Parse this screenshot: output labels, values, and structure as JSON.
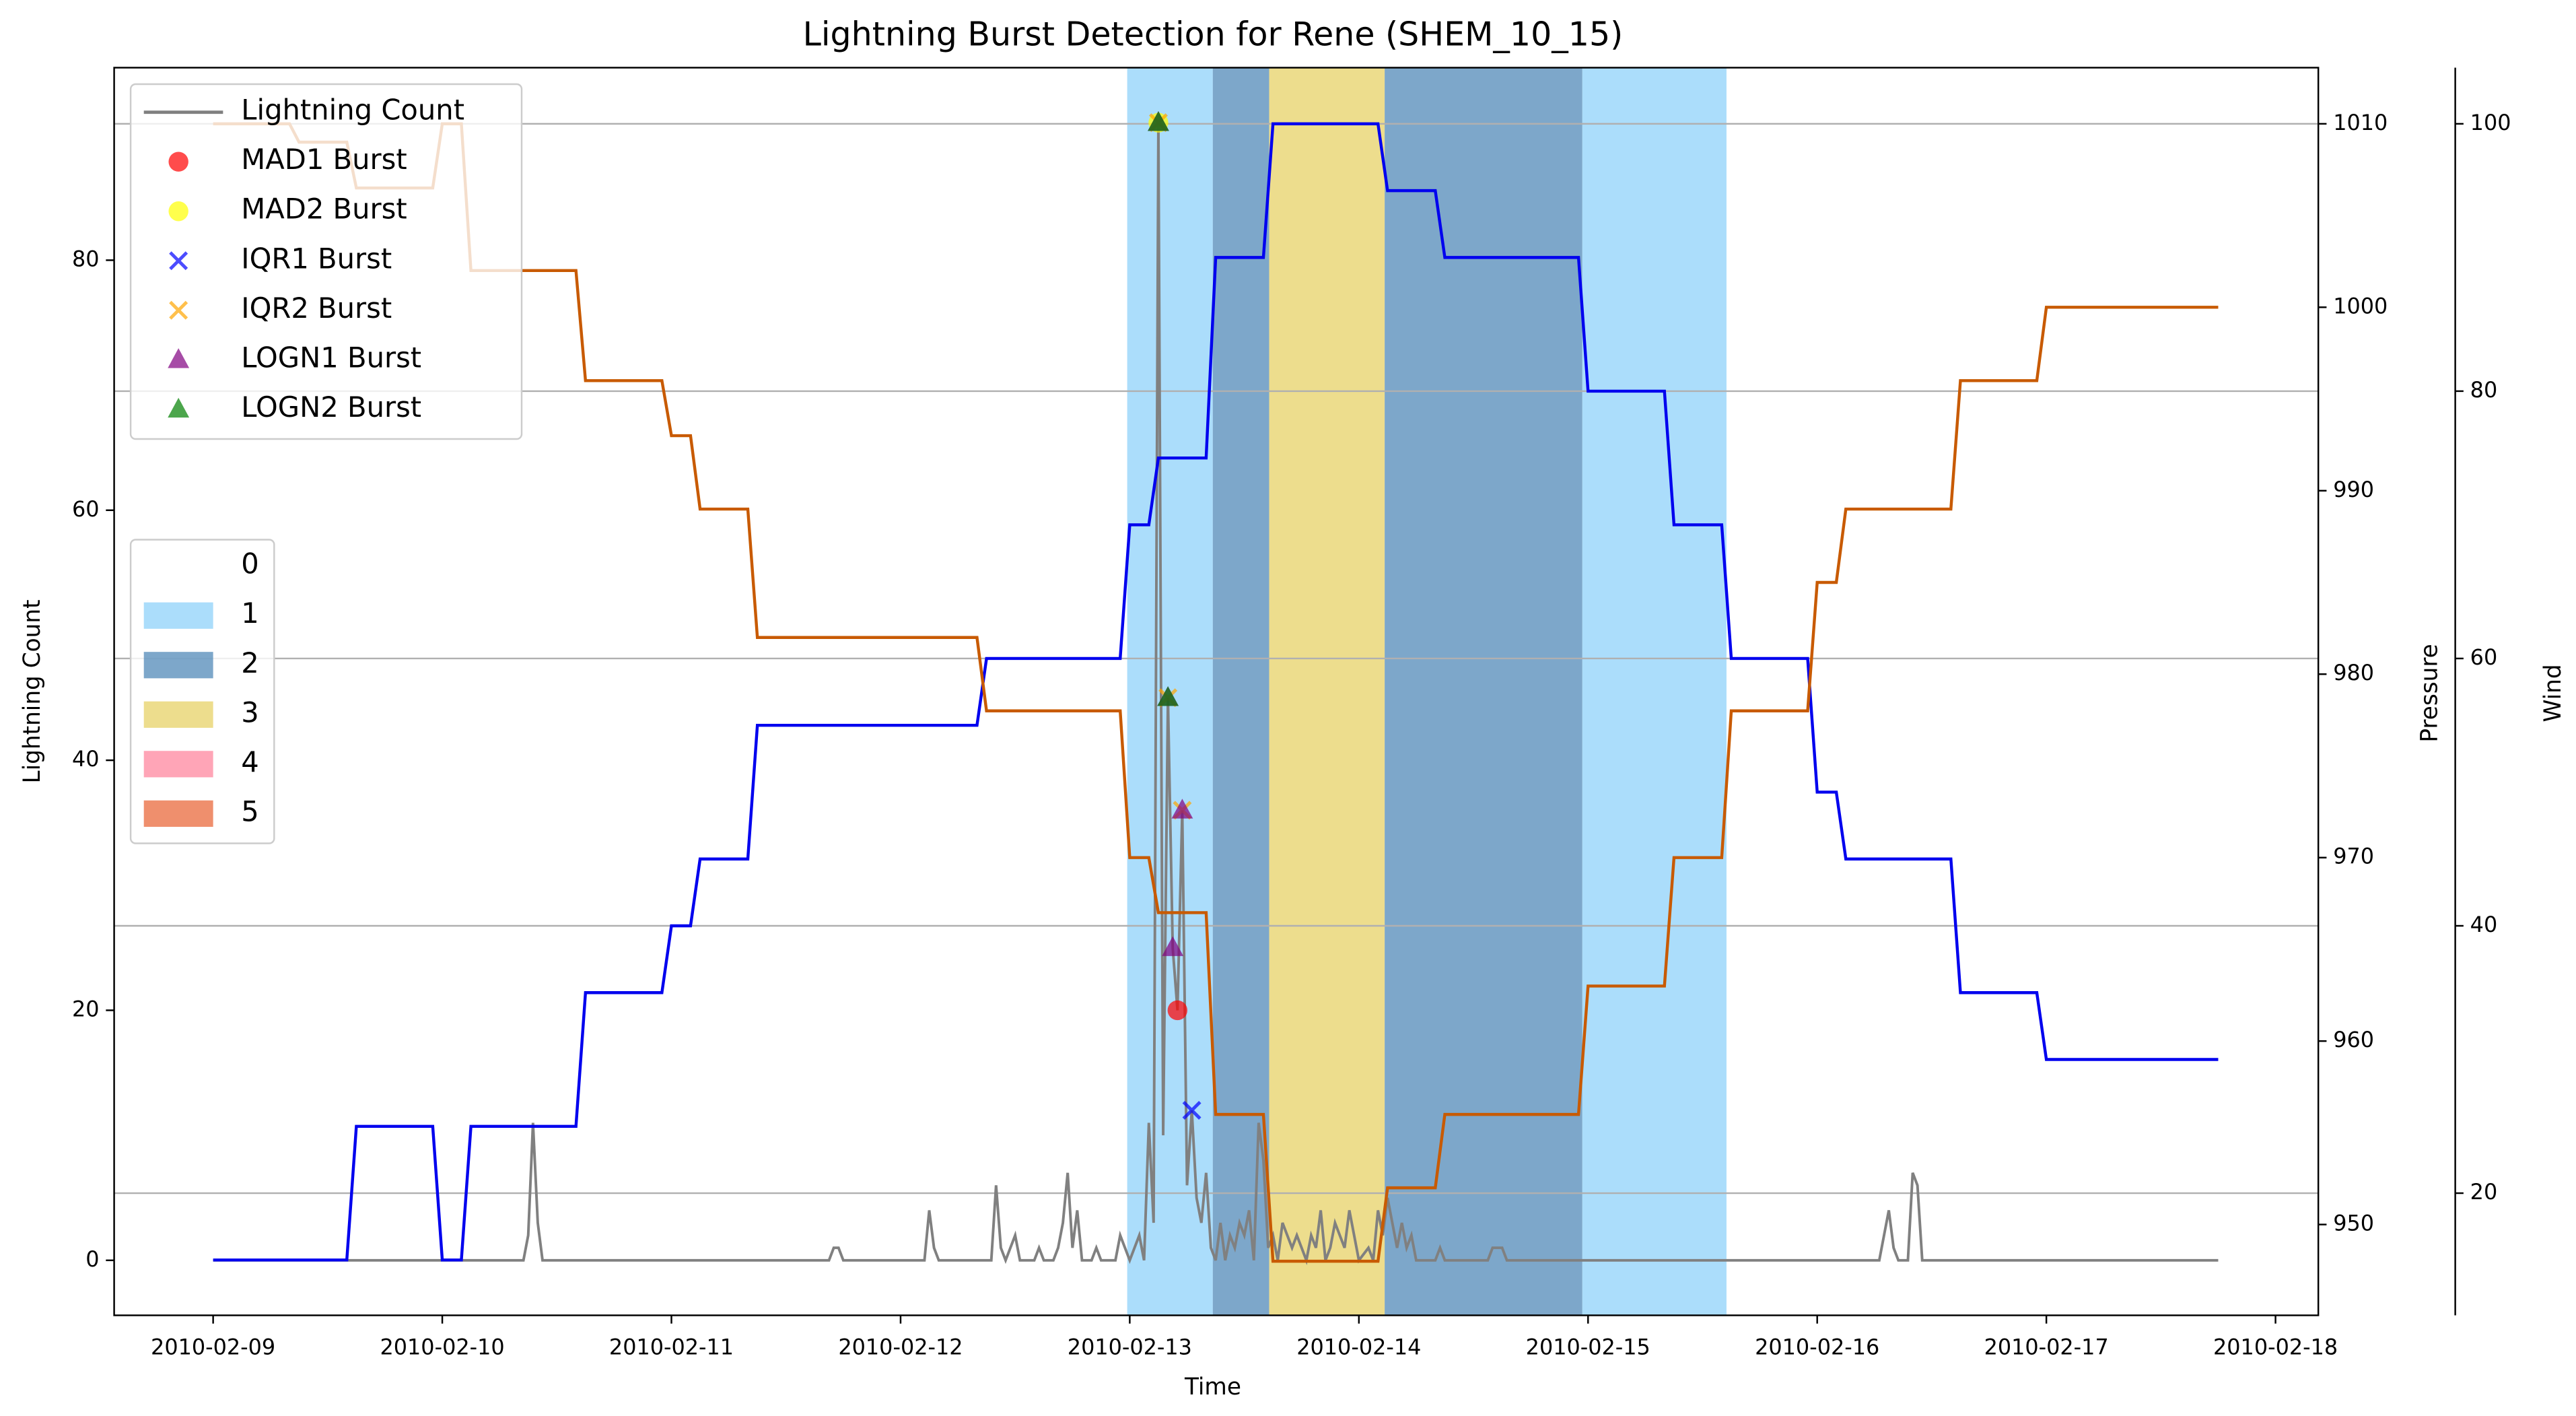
{
  "chart_data": {
    "type": "line",
    "title": "Lightning Burst Detection for Rene (SHEM_10_15)",
    "xlabel": "Time",
    "ylabel": "Lightning Count",
    "y2label": "Pressure",
    "y3label": "Wind",
    "xlim": [
      "2010-02-08 13:38",
      "2010-02-18 04:29"
    ],
    "xticks": [
      "2010-02-09",
      "2010-02-10",
      "2010-02-11",
      "2010-02-12",
      "2010-02-13",
      "2010-02-14",
      "2010-02-15",
      "2010-02-16",
      "2010-02-17",
      "2010-02-18"
    ],
    "ylim": [
      -4.4,
      95.4
    ],
    "yticks": [
      0,
      20,
      40,
      60,
      80
    ],
    "y2lim": [
      945.05,
      1013.06
    ],
    "y2ticks": [
      950,
      960,
      970,
      980,
      990,
      1000,
      1010
    ],
    "y3lim": [
      10.86,
      104.2
    ],
    "y3ticks": [
      20,
      40,
      60,
      80,
      100
    ],
    "grid": "y3",
    "legend": "upper left",
    "ycolor": "#808080",
    "y2color": "#c85a00",
    "y3color": "#00008b",
    "shading": {
      "categories": [
        0,
        1,
        2,
        3,
        4,
        5
      ],
      "colors": [
        "#ffffff",
        "#87cefa",
        "#4682b4",
        "#e6cf5c",
        "#ff7f99",
        "#e8602f"
      ],
      "spans": [
        {
          "start": "2010-02-12 23:44",
          "end": "2010-02-13 08:42",
          "category": 1
        },
        {
          "start": "2010-02-13 08:42",
          "end": "2010-02-13 14:36",
          "category": 2
        },
        {
          "start": "2010-02-13 14:36",
          "end": "2010-02-14 02:42",
          "category": 3
        },
        {
          "start": "2010-02-14 02:42",
          "end": "2010-02-14 23:24",
          "category": 2
        },
        {
          "start": "2010-02-14 23:24",
          "end": "2010-02-15 14:30",
          "category": 1
        }
      ]
    },
    "series": [
      {
        "name": "Lightning Count",
        "type": "line",
        "color": "#808080",
        "x": [
          "2010-02-09 00:00",
          "2010-02-10 08:30",
          "2010-02-10 09:00",
          "2010-02-10 09:30",
          "2010-02-10 10:00",
          "2010-02-10 10:30",
          "2010-02-11 16:30",
          "2010-02-11 17:00",
          "2010-02-11 17:30",
          "2010-02-11 18:00",
          "2010-02-12 02:30",
          "2010-02-12 03:00",
          "2010-02-12 03:30",
          "2010-02-12 04:00",
          "2010-02-12 09:30",
          "2010-02-12 10:00",
          "2010-02-12 10:30",
          "2010-02-12 11:00",
          "2010-02-12 11:30",
          "2010-02-12 12:00",
          "2010-02-12 12:30",
          "2010-02-12 14:00",
          "2010-02-12 14:30",
          "2010-02-12 15:00",
          "2010-02-12 16:00",
          "2010-02-12 16:30",
          "2010-02-12 17:00",
          "2010-02-12 17:30",
          "2010-02-12 18:00",
          "2010-02-12 18:30",
          "2010-02-12 19:00",
          "2010-02-12 20:00",
          "2010-02-12 20:30",
          "2010-02-12 21:00",
          "2010-02-12 22:30",
          "2010-02-12 23:00",
          "2010-02-12 23:30",
          "2010-02-13 00:00",
          "2010-02-13 00:30",
          "2010-02-13 01:00",
          "2010-02-13 01:30",
          "2010-02-13 02:00",
          "2010-02-13 02:30",
          "2010-02-13 03:00",
          "2010-02-13 03:30",
          "2010-02-13 04:00",
          "2010-02-13 04:30",
          "2010-02-13 05:00",
          "2010-02-13 05:30",
          "2010-02-13 06:00",
          "2010-02-13 06:30",
          "2010-02-13 07:00",
          "2010-02-13 07:30",
          "2010-02-13 08:00",
          "2010-02-13 08:30",
          "2010-02-13 09:00",
          "2010-02-13 09:30",
          "2010-02-13 10:00",
          "2010-02-13 10:30",
          "2010-02-13 11:00",
          "2010-02-13 11:30",
          "2010-02-13 12:00",
          "2010-02-13 12:30",
          "2010-02-13 13:00",
          "2010-02-13 13:30",
          "2010-02-13 14:00",
          "2010-02-13 14:30",
          "2010-02-13 15:00",
          "2010-02-13 15:30",
          "2010-02-13 16:00",
          "2010-02-13 16:30",
          "2010-02-13 17:00",
          "2010-02-13 17:30",
          "2010-02-13 18:00",
          "2010-02-13 18:30",
          "2010-02-13 19:00",
          "2010-02-13 19:30",
          "2010-02-13 20:00",
          "2010-02-13 20:30",
          "2010-02-13 21:00",
          "2010-02-13 21:30",
          "2010-02-13 22:00",
          "2010-02-13 22:30",
          "2010-02-13 23:00",
          "2010-02-13 23:30",
          "2010-02-14 00:00",
          "2010-02-14 01:00",
          "2010-02-14 01:30",
          "2010-02-14 02:00",
          "2010-02-14 02:30",
          "2010-02-14 03:00",
          "2010-02-14 03:30",
          "2010-02-14 04:00",
          "2010-02-14 04:30",
          "2010-02-14 05:00",
          "2010-02-14 05:30",
          "2010-02-14 06:00",
          "2010-02-14 08:00",
          "2010-02-14 08:30",
          "2010-02-14 09:00",
          "2010-02-14 13:30",
          "2010-02-14 14:00",
          "2010-02-14 14:30",
          "2010-02-14 15:00",
          "2010-02-14 15:30",
          "2010-02-16 06:30",
          "2010-02-16 07:00",
          "2010-02-16 07:30",
          "2010-02-16 08:00",
          "2010-02-16 08:30",
          "2010-02-16 09:30",
          "2010-02-16 10:00",
          "2010-02-16 10:30",
          "2010-02-16 11:00",
          "2010-02-17 18:00"
        ],
        "values": [
          0,
          0,
          2,
          11,
          3,
          0,
          0,
          1,
          1,
          0,
          0,
          4,
          1,
          0,
          0,
          6,
          1,
          0,
          1,
          2,
          0,
          0,
          1,
          0,
          0,
          1,
          3,
          7,
          1,
          4,
          0,
          0,
          1,
          0,
          0,
          2,
          1,
          0,
          1,
          2,
          0,
          11,
          3,
          91,
          10,
          45,
          25,
          20,
          36,
          6,
          12,
          5,
          3,
          7,
          1,
          0,
          3,
          0,
          2,
          1,
          3,
          2,
          4,
          0,
          11,
          8,
          1,
          2,
          0,
          3,
          2,
          1,
          2,
          1,
          0,
          2,
          1,
          4,
          0,
          1,
          3,
          2,
          1,
          4,
          2,
          0,
          1,
          0,
          4,
          2,
          5,
          3,
          1,
          3,
          1,
          2,
          0,
          0,
          1,
          0,
          0,
          1,
          1,
          1,
          0,
          0,
          2,
          4,
          1,
          0,
          0,
          7,
          6,
          0,
          0
        ]
      },
      {
        "name": "MAD1 Burst",
        "type": "scatter",
        "marker": "o",
        "color": "#ff0000",
        "x": [
          "2010-02-13 05:00"
        ],
        "values": [
          20
        ]
      },
      {
        "name": "MAD2 Burst",
        "type": "scatter",
        "marker": "o",
        "color": "#ffff00",
        "x": [
          "2010-02-13 03:00"
        ],
        "values": [
          91
        ]
      },
      {
        "name": "IQR1 Burst",
        "type": "scatter",
        "marker": "x",
        "color": "#0000ff",
        "x": [
          "2010-02-13 06:30"
        ],
        "values": [
          12
        ]
      },
      {
        "name": "IQR2 Burst",
        "type": "scatter",
        "marker": "x",
        "color": "#ffa500",
        "x": [
          "2010-02-13 03:00",
          "2010-02-13 04:00",
          "2010-02-13 05:30"
        ],
        "values": [
          91,
          45,
          36
        ]
      },
      {
        "name": "LOGN1 Burst",
        "type": "scatter",
        "marker": "^",
        "color": "#800080",
        "x": [
          "2010-02-13 03:00",
          "2010-02-13 04:00",
          "2010-02-13 04:30",
          "2010-02-13 05:30"
        ],
        "values": [
          91,
          45,
          25,
          36
        ]
      },
      {
        "name": "LOGN2 Burst",
        "type": "scatter",
        "marker": "^",
        "color": "#008000",
        "x": [
          "2010-02-13 03:00",
          "2010-02-13 04:00"
        ],
        "values": [
          91,
          45
        ]
      },
      {
        "type": "line",
        "axis": "y3",
        "color": "#0000ee",
        "x": [
          "2010-02-09 00:00",
          "2010-02-09 08:00",
          "2010-02-09 09:00",
          "2010-02-09 14:00",
          "2010-02-09 15:00",
          "2010-02-09 23:00",
          "2010-02-10 00:00",
          "2010-02-10 02:00",
          "2010-02-10 03:00",
          "2010-02-10 14:00",
          "2010-02-10 15:00",
          "2010-02-10 23:00",
          "2010-02-11 00:00",
          "2010-02-11 02:00",
          "2010-02-11 03:00",
          "2010-02-11 08:00",
          "2010-02-11 09:00",
          "2010-02-12 08:00",
          "2010-02-12 09:00",
          "2010-02-12 23:00",
          "2010-02-13 00:00",
          "2010-02-13 02:00",
          "2010-02-13 03:00",
          "2010-02-13 08:00",
          "2010-02-13 09:00",
          "2010-02-13 14:00",
          "2010-02-13 15:00",
          "2010-02-14 02:00",
          "2010-02-14 03:00",
          "2010-02-14 08:00",
          "2010-02-14 09:00",
          "2010-02-14 23:00",
          "2010-02-15 00:00",
          "2010-02-15 08:00",
          "2010-02-15 09:00",
          "2010-02-15 14:00",
          "2010-02-15 15:00",
          "2010-02-15 23:00",
          "2010-02-16 00:00",
          "2010-02-16 02:00",
          "2010-02-16 03:00",
          "2010-02-16 14:00",
          "2010-02-16 15:00",
          "2010-02-16 23:00",
          "2010-02-17 00:00",
          "2010-02-17 18:00"
        ],
        "values": [
          15,
          15,
          15,
          15,
          25,
          25,
          15,
          15,
          25,
          25,
          35,
          35,
          40,
          40,
          45,
          45,
          55,
          55,
          60,
          60,
          70,
          70,
          75,
          75,
          90,
          90,
          100,
          100,
          95,
          95,
          90,
          90,
          80,
          80,
          70,
          70,
          60,
          60,
          50,
          50,
          45,
          45,
          35,
          35,
          30,
          30
        ]
      },
      {
        "type": "line",
        "axis": "y2",
        "color": "#c85a00",
        "x": [
          "2010-02-09 00:00",
          "2010-02-09 08:00",
          "2010-02-09 09:00",
          "2010-02-09 14:00",
          "2010-02-09 15:00",
          "2010-02-09 23:00",
          "2010-02-10 00:00",
          "2010-02-10 02:00",
          "2010-02-10 03:00",
          "2010-02-10 14:00",
          "2010-02-10 15:00",
          "2010-02-10 23:00",
          "2010-02-11 00:00",
          "2010-02-11 02:00",
          "2010-02-11 03:00",
          "2010-02-11 08:00",
          "2010-02-11 09:00",
          "2010-02-12 08:00",
          "2010-02-12 09:00",
          "2010-02-12 23:00",
          "2010-02-13 00:00",
          "2010-02-13 02:00",
          "2010-02-13 03:00",
          "2010-02-13 08:00",
          "2010-02-13 09:00",
          "2010-02-13 14:00",
          "2010-02-13 15:00",
          "2010-02-14 02:00",
          "2010-02-14 03:00",
          "2010-02-14 08:00",
          "2010-02-14 09:00",
          "2010-02-14 23:00",
          "2010-02-15 00:00",
          "2010-02-15 08:00",
          "2010-02-15 09:00",
          "2010-02-15 14:00",
          "2010-02-15 15:00",
          "2010-02-15 23:00",
          "2010-02-16 00:00",
          "2010-02-16 02:00",
          "2010-02-16 03:00",
          "2010-02-16 14:00",
          "2010-02-16 15:00",
          "2010-02-16 23:00",
          "2010-02-17 00:00",
          "2010-02-17 18:00"
        ],
        "values": [
          1010,
          1010,
          1009,
          1009,
          1006.5,
          1006.5,
          1010,
          1010,
          1002,
          1002,
          996,
          996,
          993,
          993,
          989,
          989,
          982,
          982,
          978,
          978,
          970,
          970,
          967,
          967,
          956,
          956,
          948,
          948,
          952,
          952,
          956,
          956,
          963,
          963,
          970,
          970,
          978,
          978,
          985,
          985,
          989,
          989,
          996,
          996,
          1000,
          1000
        ]
      }
    ]
  }
}
